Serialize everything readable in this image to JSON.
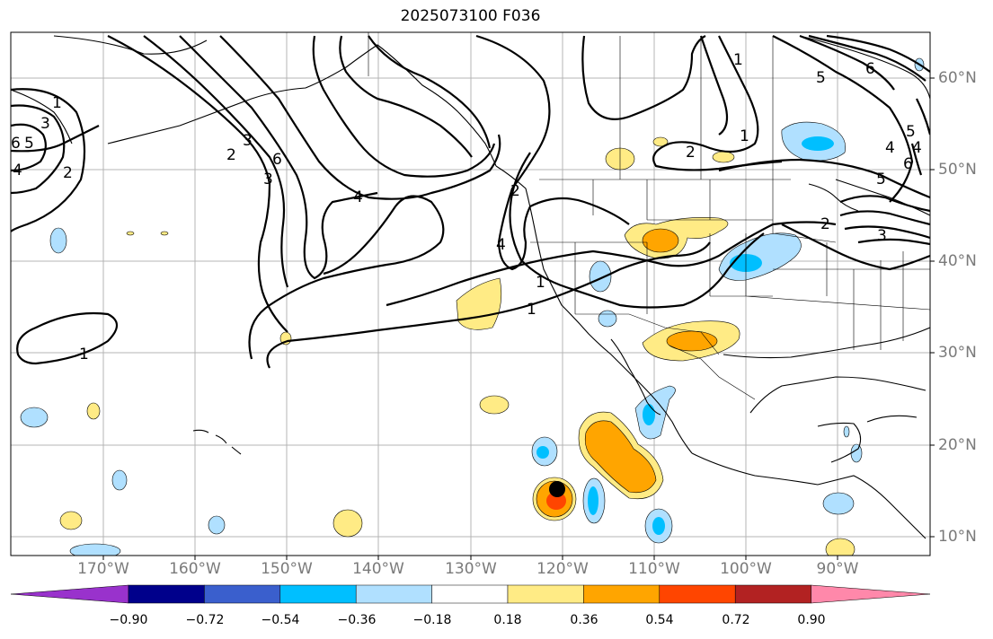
{
  "title": "2025073100 F036",
  "latitude_labels": [
    "60°N",
    "50°N",
    "40°N",
    "30°N",
    "20°N",
    "10°N"
  ],
  "longitude_labels": [
    "170°W",
    "160°W",
    "150°W",
    "140°W",
    "130°W",
    "120°W",
    "110°W",
    "100°W",
    "90°W"
  ],
  "colorbar": {
    "tick_labels": [
      "−0.90",
      "−0.72",
      "−0.54",
      "−0.36",
      "−0.18",
      "0.18",
      "0.36",
      "0.54",
      "0.72",
      "0.90"
    ],
    "colors": [
      "#9932cc",
      "#00008b",
      "#3a5fcd",
      "#00bfff",
      "#b0e0ff",
      "#ffffff",
      "#ffeb85",
      "#ffa500",
      "#ff4500",
      "#b22222",
      "#ff88aa"
    ]
  },
  "contour_labels": [
    "1",
    "3",
    "6",
    "5",
    "4",
    "2",
    "1",
    "2",
    "3",
    "6",
    "3",
    "4",
    "2",
    "1",
    "1",
    "1",
    "4",
    "2",
    "1",
    "5",
    "6",
    "5",
    "4",
    "6",
    "4",
    "5",
    "2",
    "3"
  ],
  "colors": {
    "grid": "#b4b4b4",
    "contour": "#000000",
    "axis_label": "#7a7a7a"
  }
}
